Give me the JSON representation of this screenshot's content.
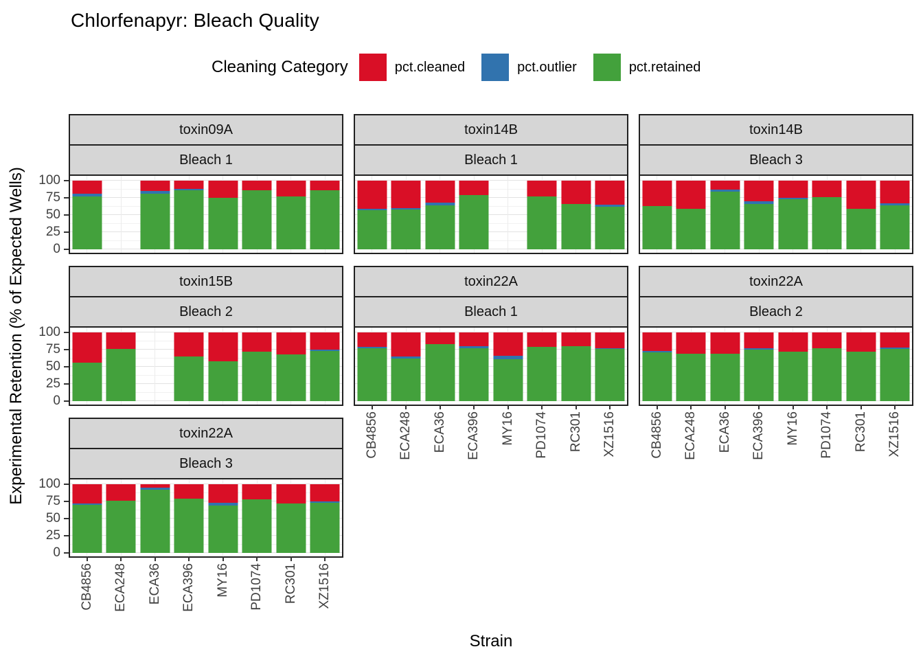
{
  "title": "Chlorfenapyr: Bleach Quality",
  "legend": {
    "title": "Cleaning Category",
    "items": [
      {
        "name": "pct.cleaned",
        "label": "pct.cleaned",
        "color": "#d90f26"
      },
      {
        "name": "pct.outlier",
        "label": "pct.outlier",
        "color": "#3173ae"
      },
      {
        "name": "pct.retained",
        "label": "pct.retained",
        "color": "#43a13c"
      }
    ]
  },
  "axes": {
    "x_title": "Strain",
    "y_title": "Experimental Retention (% of Expected Wells)",
    "y_ticks": [
      0,
      25,
      50,
      75,
      100
    ],
    "y_minor_ticks": [
      12.5,
      37.5,
      62.5,
      87.5
    ],
    "y_range": [
      0,
      100
    ]
  },
  "chart_data": {
    "type": "bar",
    "stacked": true,
    "title": "Chlorfenapyr: Bleach Quality",
    "xlabel": "Strain",
    "ylabel": "Experimental Retention (% of Expected Wells)",
    "ylim": [
      0,
      100
    ],
    "grid": true,
    "legend_position": "top",
    "categories": [
      "CB4856",
      "ECA248",
      "ECA36",
      "ECA396",
      "MY16",
      "PD1074",
      "RC301",
      "XZ1516"
    ],
    "stack_order_bottom_to_top": [
      "pct.retained",
      "pct.outlier",
      "pct.cleaned"
    ],
    "facets": [
      {
        "row": 1,
        "col": 1,
        "toxin": "toxin09A",
        "bleach": "Bleach 1",
        "show_x_labels": false,
        "series": {
          "pct.retained": [
            77,
            null,
            81,
            86,
            75,
            86,
            77,
            86
          ],
          "pct.outlier": [
            4,
            null,
            4,
            2,
            0,
            0,
            0,
            0
          ],
          "pct.cleaned": [
            19,
            null,
            15,
            12,
            25,
            14,
            23,
            14
          ]
        }
      },
      {
        "row": 1,
        "col": 2,
        "toxin": "toxin14B",
        "bleach": "Bleach 1",
        "show_x_labels": false,
        "series": {
          "pct.retained": [
            57,
            58,
            64,
            79,
            null,
            77,
            66,
            62
          ],
          "pct.outlier": [
            2,
            2,
            4,
            0,
            null,
            0,
            0,
            3
          ],
          "pct.cleaned": [
            41,
            40,
            32,
            21,
            null,
            23,
            34,
            35
          ]
        }
      },
      {
        "row": 1,
        "col": 3,
        "toxin": "toxin14B",
        "bleach": "Bleach 3",
        "show_x_labels": false,
        "series": {
          "pct.retained": [
            63,
            59,
            84,
            66,
            73,
            76,
            59,
            64
          ],
          "pct.outlier": [
            0,
            0,
            3,
            4,
            2,
            0,
            0,
            3
          ],
          "pct.cleaned": [
            37,
            41,
            13,
            30,
            25,
            24,
            41,
            33
          ]
        }
      },
      {
        "row": 2,
        "col": 1,
        "toxin": "toxin15B",
        "bleach": "Bleach 2",
        "show_x_labels": false,
        "series": {
          "pct.retained": [
            56,
            76,
            null,
            65,
            58,
            72,
            68,
            73
          ],
          "pct.outlier": [
            0,
            0,
            null,
            0,
            0,
            0,
            0,
            2
          ],
          "pct.cleaned": [
            44,
            24,
            null,
            35,
            42,
            28,
            32,
            25
          ]
        }
      },
      {
        "row": 2,
        "col": 2,
        "toxin": "toxin22A",
        "bleach": "Bleach 1",
        "show_x_labels": true,
        "series": {
          "pct.retained": [
            77,
            62,
            83,
            77,
            61,
            79,
            80,
            76
          ],
          "pct.outlier": [
            2,
            3,
            0,
            3,
            5,
            0,
            0,
            1
          ],
          "pct.cleaned": [
            21,
            35,
            17,
            20,
            34,
            21,
            20,
            23
          ]
        }
      },
      {
        "row": 2,
        "col": 3,
        "toxin": "toxin22A",
        "bleach": "Bleach 2",
        "show_x_labels": true,
        "series": {
          "pct.retained": [
            71,
            69,
            69,
            75,
            72,
            77,
            72,
            76
          ],
          "pct.outlier": [
            2,
            0,
            0,
            2,
            0,
            0,
            0,
            2
          ],
          "pct.cleaned": [
            27,
            31,
            31,
            23,
            28,
            23,
            28,
            22
          ]
        }
      },
      {
        "row": 3,
        "col": 1,
        "toxin": "toxin22A",
        "bleach": "Bleach 3",
        "show_x_labels": true,
        "series": {
          "pct.retained": [
            70,
            76,
            92,
            79,
            69,
            78,
            72,
            73
          ],
          "pct.outlier": [
            2,
            0,
            3,
            0,
            4,
            0,
            0,
            2
          ],
          "pct.cleaned": [
            28,
            24,
            5,
            21,
            27,
            22,
            28,
            25
          ]
        }
      }
    ]
  }
}
